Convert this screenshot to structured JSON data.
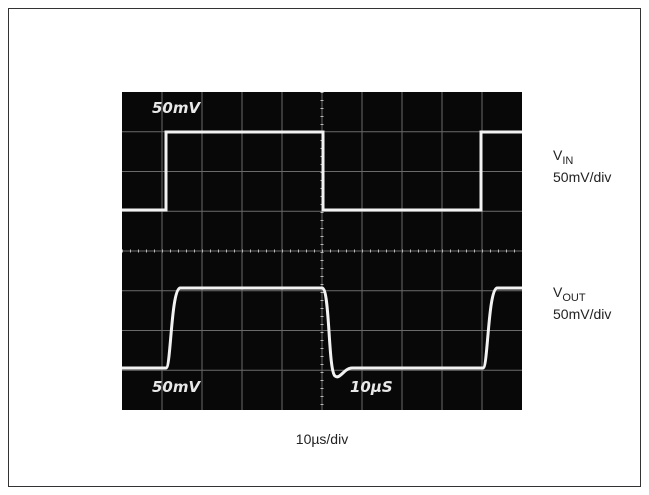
{
  "screen": {
    "labels": [
      "50mV",
      "50mV",
      "10µS"
    ]
  },
  "traces": [
    {
      "name": "V",
      "subscript": "IN",
      "scale": "50mV/div"
    },
    {
      "name": "V",
      "subscript": "OUT",
      "scale": "50mV/div"
    }
  ],
  "x_label": "10µs/div"
}
